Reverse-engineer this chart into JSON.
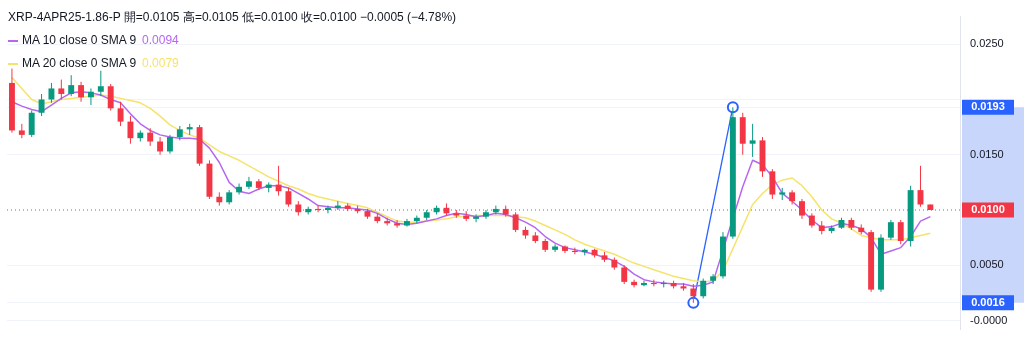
{
  "chart_data": {
    "type": "candlestick",
    "title": "XRP-4APR25-1.86-P 開=0.0105 高=0.0105 低=0.0100 收=0.0100 −0.0005 (−4.78%)",
    "categories": [
      null,
      null,
      null,
      null,
      null,
      null,
      null,
      null,
      null,
      null,
      null,
      null,
      null,
      null,
      null,
      null,
      null,
      null,
      null,
      null,
      null,
      null,
      null,
      null,
      null,
      null,
      null,
      null,
      null,
      null,
      null,
      null,
      null,
      null,
      null,
      null,
      null,
      null,
      null,
      null,
      null,
      null,
      null,
      null,
      null,
      null,
      null,
      null,
      null,
      null,
      null,
      null,
      null,
      null,
      null,
      null,
      null,
      null,
      null,
      null,
      null,
      null,
      null,
      null,
      null,
      null,
      null,
      null,
      null,
      null,
      null,
      null,
      null,
      null,
      null,
      null,
      null,
      null,
      null,
      null,
      null,
      null,
      null,
      null,
      null,
      null,
      null,
      null,
      null,
      null,
      null,
      null,
      null,
      null
    ],
    "ohlc": [
      [
        0.0215,
        0.0228,
        0.017,
        0.0172
      ],
      [
        0.0172,
        0.0178,
        0.0165,
        0.0168
      ],
      [
        0.0168,
        0.019,
        0.0166,
        0.0188
      ],
      [
        0.0188,
        0.0205,
        0.0185,
        0.02
      ],
      [
        0.02,
        0.0215,
        0.0197,
        0.021
      ],
      [
        0.021,
        0.0218,
        0.02,
        0.0205
      ],
      [
        0.0205,
        0.0222,
        0.0203,
        0.0213
      ],
      [
        0.0213,
        0.0216,
        0.0198,
        0.0202
      ],
      [
        0.0202,
        0.021,
        0.0195,
        0.0207
      ],
      [
        0.0207,
        0.0226,
        0.0203,
        0.0212
      ],
      [
        0.0212,
        0.0214,
        0.019,
        0.0192
      ],
      [
        0.0192,
        0.0198,
        0.0176,
        0.018
      ],
      [
        0.018,
        0.0185,
        0.016,
        0.0165
      ],
      [
        0.0165,
        0.0172,
        0.0162,
        0.017
      ],
      [
        0.017,
        0.0174,
        0.0158,
        0.0162
      ],
      [
        0.0162,
        0.0166,
        0.015,
        0.0153
      ],
      [
        0.0153,
        0.0168,
        0.0151,
        0.0166
      ],
      [
        0.0166,
        0.0176,
        0.0163,
        0.0173
      ],
      [
        0.0173,
        0.0178,
        0.0168,
        0.0175
      ],
      [
        0.0175,
        0.0177,
        0.014,
        0.0142
      ],
      [
        0.0142,
        0.0145,
        0.011,
        0.0112
      ],
      [
        0.0112,
        0.0116,
        0.0104,
        0.0107
      ],
      [
        0.0107,
        0.0118,
        0.0105,
        0.0116
      ],
      [
        0.0116,
        0.0124,
        0.0114,
        0.0121
      ],
      [
        0.0121,
        0.013,
        0.0119,
        0.0126
      ],
      [
        0.0126,
        0.0128,
        0.0118,
        0.012
      ],
      [
        0.012,
        0.0125,
        0.0116,
        0.0123
      ],
      [
        0.0123,
        0.014,
        0.0113,
        0.0117
      ],
      [
        0.0117,
        0.012,
        0.0103,
        0.0105
      ],
      [
        0.0105,
        0.0108,
        0.0095,
        0.0098
      ],
      [
        0.0098,
        0.0103,
        0.0096,
        0.0101
      ],
      [
        0.0101,
        0.0104,
        0.0098,
        0.01
      ],
      [
        0.01,
        0.0104,
        0.0097,
        0.0102
      ],
      [
        0.0102,
        0.0108,
        0.01,
        0.0104
      ],
      [
        0.0104,
        0.0106,
        0.0099,
        0.0101
      ],
      [
        0.0101,
        0.0104,
        0.0097,
        0.0099
      ],
      [
        0.0099,
        0.0101,
        0.0092,
        0.0094
      ],
      [
        0.0094,
        0.0097,
        0.0088,
        0.009
      ],
      [
        0.009,
        0.0093,
        0.0086,
        0.0088
      ],
      [
        0.0088,
        0.0091,
        0.0084,
        0.0086
      ],
      [
        0.0086,
        0.0092,
        0.0085,
        0.009
      ],
      [
        0.009,
        0.0095,
        0.0088,
        0.0093
      ],
      [
        0.0093,
        0.01,
        0.0091,
        0.0098
      ],
      [
        0.0098,
        0.0104,
        0.0096,
        0.0102
      ],
      [
        0.0102,
        0.0106,
        0.0095,
        0.0097
      ],
      [
        0.0097,
        0.01,
        0.0093,
        0.0095
      ],
      [
        0.0095,
        0.0099,
        0.009,
        0.0092
      ],
      [
        0.0092,
        0.0096,
        0.0089,
        0.0094
      ],
      [
        0.0094,
        0.01,
        0.0092,
        0.0098
      ],
      [
        0.0098,
        0.0104,
        0.0096,
        0.0101
      ],
      [
        0.0101,
        0.0104,
        0.0094,
        0.0096
      ],
      [
        0.0096,
        0.0098,
        0.008,
        0.0082
      ],
      [
        0.0082,
        0.0085,
        0.0074,
        0.0077
      ],
      [
        0.0077,
        0.008,
        0.007,
        0.0072
      ],
      [
        0.0072,
        0.0074,
        0.0062,
        0.0064
      ],
      [
        0.0064,
        0.0069,
        0.0062,
        0.0067
      ],
      [
        0.0067,
        0.0068,
        0.0061,
        0.0063
      ],
      [
        0.0063,
        0.0066,
        0.006,
        0.0062
      ],
      [
        0.0062,
        0.0065,
        0.0059,
        0.0064
      ],
      [
        0.0064,
        0.0065,
        0.0057,
        0.0059
      ],
      [
        0.0059,
        0.0062,
        0.0053,
        0.0055
      ],
      [
        0.0055,
        0.0057,
        0.0046,
        0.0048
      ],
      [
        0.0048,
        0.005,
        0.0033,
        0.0035
      ],
      [
        0.0035,
        0.0037,
        0.003,
        0.0032
      ],
      [
        0.0032,
        0.0036,
        0.0031,
        0.0034
      ],
      [
        0.0034,
        0.0037,
        0.0031,
        0.0033
      ],
      [
        0.0033,
        0.0036,
        0.003,
        0.0034
      ],
      [
        0.0034,
        0.0036,
        0.0029,
        0.0031
      ],
      [
        0.0031,
        0.0034,
        0.0027,
        0.0029
      ],
      [
        0.0029,
        0.0033,
        0.0016,
        0.0022
      ],
      [
        0.0022,
        0.0038,
        0.002,
        0.0036
      ],
      [
        0.0036,
        0.0042,
        0.0033,
        0.004
      ],
      [
        0.004,
        0.008,
        0.0038,
        0.0076
      ],
      [
        0.0076,
        0.0193,
        0.0074,
        0.0184
      ],
      [
        0.0184,
        0.0188,
        0.015,
        0.016
      ],
      [
        0.016,
        0.0178,
        0.0148,
        0.0163
      ],
      [
        0.0163,
        0.0166,
        0.013,
        0.0135
      ],
      [
        0.0135,
        0.0137,
        0.011,
        0.0114
      ],
      [
        0.0114,
        0.012,
        0.0109,
        0.0116
      ],
      [
        0.0116,
        0.0118,
        0.0105,
        0.0108
      ],
      [
        0.0108,
        0.011,
        0.0092,
        0.0095
      ],
      [
        0.0095,
        0.0097,
        0.0084,
        0.0086
      ],
      [
        0.0086,
        0.009,
        0.0078,
        0.0081
      ],
      [
        0.0081,
        0.0086,
        0.0079,
        0.0084
      ],
      [
        0.0084,
        0.0093,
        0.0083,
        0.0091
      ],
      [
        0.0091,
        0.0093,
        0.0082,
        0.0084
      ],
      [
        0.0084,
        0.0087,
        0.0078,
        0.008
      ],
      [
        0.008,
        0.0082,
        0.0026,
        0.0028
      ],
      [
        0.0028,
        0.0078,
        0.0026,
        0.0075
      ],
      [
        0.0075,
        0.0091,
        0.0073,
        0.0089
      ],
      [
        0.0089,
        0.0091,
        0.0069,
        0.0072
      ],
      [
        0.0072,
        0.0122,
        0.0067,
        0.0118
      ],
      [
        0.0118,
        0.014,
        0.0103,
        0.0105
      ],
      [
        0.0105,
        0.0105,
        0.01,
        0.01
      ]
    ],
    "series": [
      {
        "type": "line",
        "name": "MA 10 close 0 SMA 9",
        "color": "#b667f1",
        "values": [
          0.0198,
          0.0194,
          0.0191,
          0.0189,
          0.0195,
          0.0201,
          0.0206,
          0.0207,
          0.0206,
          0.0204,
          0.02,
          0.0197,
          0.0187,
          0.0178,
          0.0172,
          0.0168,
          0.0166,
          0.0165,
          0.0165,
          0.0164,
          0.0156,
          0.0143,
          0.0125,
          0.0117,
          0.0115,
          0.0119,
          0.0122,
          0.0122,
          0.012,
          0.0115,
          0.011,
          0.0104,
          0.0103,
          0.0102,
          0.0102,
          0.0101,
          0.01,
          0.0097,
          0.0092,
          0.0088,
          0.0087,
          0.0088,
          0.009,
          0.0092,
          0.0095,
          0.0097,
          0.0096,
          0.0094,
          0.0095,
          0.0097,
          0.0096,
          0.0093,
          0.0089,
          0.0084,
          0.0076,
          0.007,
          0.0066,
          0.0064,
          0.0062,
          0.006,
          0.0057,
          0.0054,
          0.0049,
          0.0042,
          0.0037,
          0.0035,
          0.0034,
          0.0033,
          0.0033,
          0.0031,
          0.0032,
          0.0035,
          null,
          null,
          0.0121,
          0.0145,
          0.0141,
          0.013,
          0.0115,
          0.0108,
          0.01,
          0.0091,
          0.0084,
          0.0085,
          0.0088,
          0.0086,
          0.0083,
          0.0075,
          0.006,
          0.0063,
          0.0066,
          0.0076,
          0.009,
          0.0094
        ]
      },
      {
        "type": "line",
        "name": "MA 20 close 0 SMA 9",
        "color": "#f5e36b",
        "values": [
          0.022,
          0.021,
          0.02,
          0.0196,
          0.0198,
          0.02,
          0.0201,
          0.0202,
          0.0203,
          0.0204,
          0.0203,
          0.0201,
          0.0199,
          0.0197,
          0.0192,
          0.0185,
          0.0177,
          0.0172,
          0.0168,
          0.0165,
          0.0159,
          0.0153,
          0.0149,
          0.0145,
          0.014,
          0.0135,
          0.013,
          0.0126,
          0.0122,
          0.0119,
          0.0115,
          0.0112,
          0.011,
          0.0108,
          0.0106,
          0.0104,
          0.0102,
          0.0098,
          0.0094,
          0.009,
          0.0089,
          0.0089,
          0.009,
          0.0091,
          0.0092,
          0.0094,
          0.0094,
          0.0095,
          0.0095,
          0.0095,
          0.0095,
          0.0094,
          0.0093,
          0.009,
          0.0086,
          0.0082,
          0.0078,
          0.0073,
          0.0069,
          0.0066,
          0.0063,
          0.006,
          0.0056,
          0.0052,
          0.0049,
          0.0046,
          0.0043,
          0.004,
          0.0038,
          0.0036,
          0.0035,
          0.0036,
          0.0045,
          0.0065,
          0.0085,
          0.0105,
          0.0115,
          0.0123,
          0.0127,
          0.0129,
          0.0122,
          0.0112,
          0.01,
          0.0092,
          0.0088,
          0.0083,
          0.0077,
          0.0075,
          0.0073,
          0.0073,
          0.0073,
          0.0075,
          0.0077,
          0.0079
        ]
      },
      {
        "type": "line",
        "color": "#2962ff",
        "marker": "circle",
        "values": [
          null,
          null,
          null,
          null,
          null,
          null,
          null,
          null,
          null,
          null,
          null,
          null,
          null,
          null,
          null,
          null,
          null,
          null,
          null,
          null,
          null,
          null,
          null,
          null,
          null,
          null,
          null,
          null,
          null,
          null,
          null,
          null,
          null,
          null,
          null,
          null,
          null,
          null,
          null,
          null,
          null,
          null,
          null,
          null,
          null,
          null,
          null,
          null,
          null,
          null,
          null,
          null,
          null,
          null,
          null,
          null,
          null,
          null,
          null,
          null,
          null,
          null,
          null,
          null,
          null,
          null,
          null,
          null,
          null,
          0.0016,
          null,
          null,
          null,
          0.0193,
          null,
          null,
          null,
          null,
          null,
          null,
          null,
          null,
          null,
          null,
          null,
          null,
          null,
          null,
          null,
          null,
          null,
          null,
          null,
          null
        ]
      }
    ],
    "ylim": [
      -0.0008,
      0.0275
    ],
    "yticks": [
      {
        "value": 0,
        "label": "-0.0000"
      },
      {
        "value": 0.005,
        "label": "0.0050"
      },
      {
        "value": 0.015,
        "label": "0.0150"
      },
      {
        "value": 0.02,
        "label": null
      },
      {
        "value": 0.025,
        "label": "0.0250"
      },
      {
        "value": 0.0193,
        "label": "0.0193"
      },
      {
        "value": 0.0016,
        "label": "0.0016"
      }
    ],
    "tick_labels": "y",
    "grid": "y",
    "legend": "top left",
    "marker": "none",
    "ref_lines": [
      {
        "axis": "y",
        "value": 0.01,
        "label": "0.0100",
        "color": "#f23645",
        "line_style": "dotted"
      }
    ],
    "annotations": [
      "0.0094",
      "0.0079"
    ]
  }
}
